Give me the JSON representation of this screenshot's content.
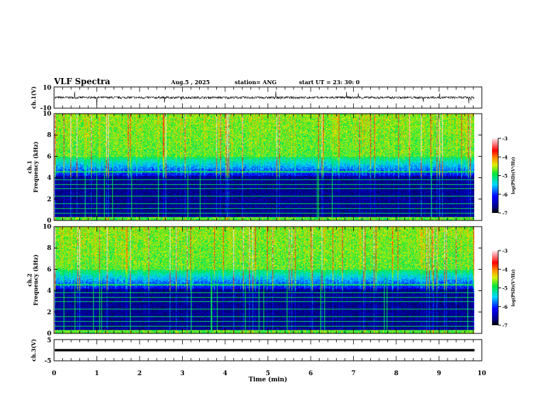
{
  "header": {
    "title": "VLF Spectra",
    "date": "Aug.5  , 2025",
    "station": "station= ANG",
    "start": "start  UT  =   23: 30: 0"
  },
  "chart_data": [
    {
      "type": "line",
      "name": "ch1-waveform",
      "ylabel": "ch.1(V)",
      "ylim": [
        -10,
        10
      ],
      "yticks": [
        "10",
        "-10"
      ],
      "xlim": [
        0,
        10
      ],
      "baseline": 0,
      "data_end_min": 9.83
    },
    {
      "type": "heatmap",
      "name": "ch1-spectrogram",
      "ylabel": "ch.1\nFrequency (kHz)",
      "ylabel_lines": [
        "ch.1",
        "Frequency  (kHz)"
      ],
      "ylim": [
        0,
        10
      ],
      "yticks": [
        "0",
        "2",
        "4",
        "6",
        "8",
        "10"
      ],
      "xlim": [
        0,
        10
      ],
      "colorbar": {
        "label": "log(PSD)(V²/Hz)",
        "range": [
          -7,
          -3
        ],
        "ticks": [
          "-3",
          "-4",
          "-5",
          "-6",
          "-7"
        ]
      }
    },
    {
      "type": "heatmap",
      "name": "ch2-spectrogram",
      "ylabel_lines": [
        "ch.2",
        "Frequency  (kHz)"
      ],
      "ylim": [
        0,
        10
      ],
      "yticks": [
        "0",
        "2",
        "4",
        "6",
        "8",
        "10"
      ],
      "xlim": [
        0,
        10
      ],
      "colorbar": {
        "label": "log(PSD)(V²/Hz)",
        "range": [
          -7,
          -3
        ],
        "ticks": [
          "-3",
          "-4",
          "-5",
          "-6",
          "-7"
        ]
      }
    },
    {
      "type": "line",
      "name": "ch3-waveform",
      "ylabel": "ch.3(V)",
      "ylim": [
        -5,
        5
      ],
      "yticks": [
        "5",
        "-5"
      ],
      "xlim": [
        0,
        10
      ],
      "baseline": 0,
      "data_end_min": 9.83
    }
  ],
  "xaxis": {
    "label": "Time  (min)",
    "ticks": [
      "0",
      "1",
      "2",
      "3",
      "4",
      "5",
      "6",
      "7",
      "8",
      "9",
      "10"
    ]
  }
}
